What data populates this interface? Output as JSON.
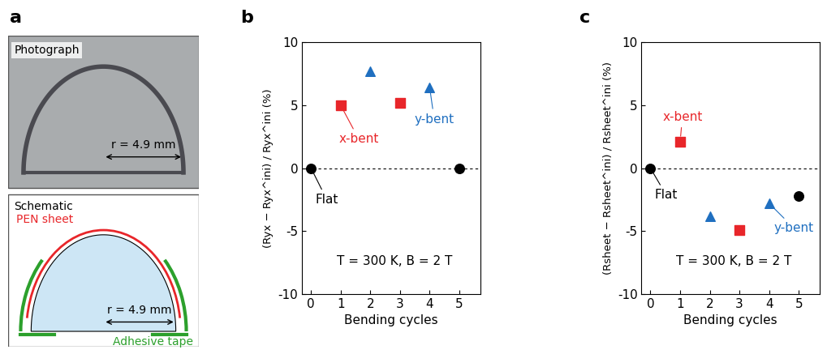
{
  "panel_a": {
    "label": "a",
    "photograph": {
      "title": "Photograph",
      "radius_label": "r = 4.9 mm"
    },
    "schematic": {
      "title": "Schematic",
      "sheet_label": "PEN sheet",
      "tape_label": "Adhesive tape",
      "radius_label": "r = 4.9 mm"
    }
  },
  "chart_data": [
    {
      "panel": "b",
      "type": "scatter",
      "xlabel": "Bending cycles",
      "ylabel": "(Ryx − Ryx^ini) / Ryx^ini (%)",
      "annotation": "T = 300 K, B = 2 T",
      "xlim": [
        -0.3,
        5.7
      ],
      "xticks": [
        0,
        1,
        2,
        3,
        4,
        5
      ],
      "ylim": [
        -10,
        10
      ],
      "yticks": [
        -10,
        -5,
        0,
        5,
        10
      ],
      "reference_line": 0,
      "series": [
        {
          "name": "Flat",
          "color": "#000000",
          "marker": "circle",
          "x": [
            0,
            5
          ],
          "values": [
            0,
            0
          ]
        },
        {
          "name": "x-bent",
          "color": "#e8262a",
          "marker": "square",
          "x": [
            1,
            3
          ],
          "values": [
            5.0,
            5.2
          ]
        },
        {
          "name": "y-bent",
          "color": "#1f6fc0",
          "marker": "triangle",
          "x": [
            2,
            4
          ],
          "values": [
            7.7,
            6.4
          ]
        }
      ]
    },
    {
      "panel": "c",
      "type": "scatter",
      "xlabel": "Bending cycles",
      "ylabel": "(Rsheet − Rsheet^ini) / Rsheet^ini (%)",
      "annotation": "T = 300 K, B = 2 T",
      "xlim": [
        -0.3,
        5.7
      ],
      "xticks": [
        0,
        1,
        2,
        3,
        4,
        5
      ],
      "ylim": [
        -10,
        10
      ],
      "yticks": [
        -10,
        -5,
        0,
        5,
        10
      ],
      "reference_line": 0,
      "series": [
        {
          "name": "Flat",
          "color": "#000000",
          "marker": "circle",
          "x": [
            0,
            5
          ],
          "values": [
            0,
            -2.2
          ]
        },
        {
          "name": "x-bent",
          "color": "#e8262a",
          "marker": "square",
          "x": [
            1,
            3
          ],
          "values": [
            2.1,
            -4.9
          ]
        },
        {
          "name": "y-bent",
          "color": "#1f6fc0",
          "marker": "triangle",
          "x": [
            2,
            4
          ],
          "values": [
            -3.8,
            -2.8
          ]
        }
      ]
    }
  ]
}
